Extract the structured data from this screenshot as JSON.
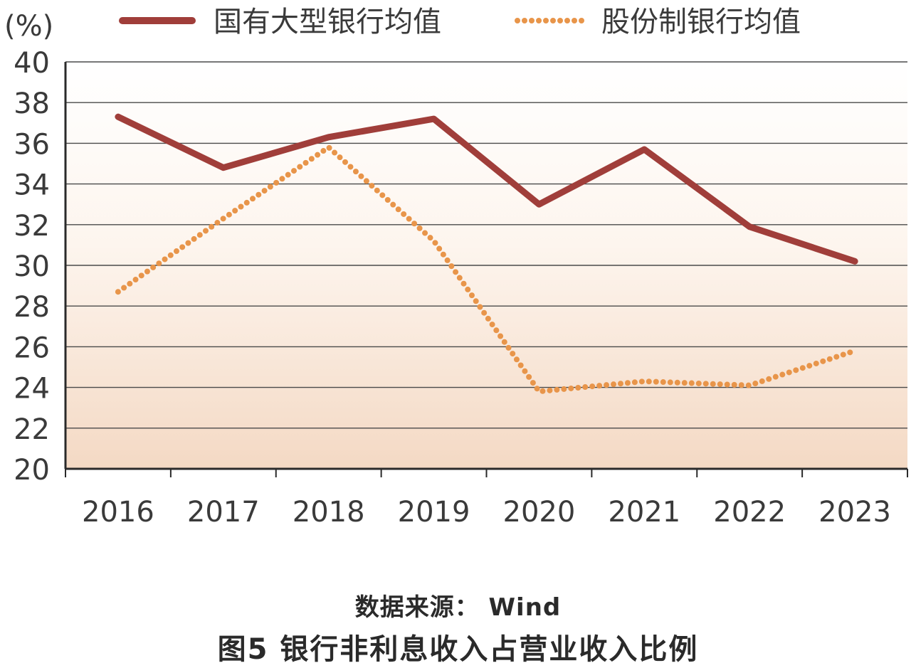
{
  "chart_data": {
    "type": "line",
    "ylabel": "(%)",
    "ylim": [
      20,
      40
    ],
    "yticks": [
      "20",
      "22",
      "24",
      "26",
      "28",
      "30",
      "32",
      "34",
      "36",
      "38",
      "40"
    ],
    "categories": [
      "2016",
      "2017",
      "2018",
      "2019",
      "2020",
      "2021",
      "2022",
      "2023"
    ],
    "legend_position": "top",
    "grid": true,
    "series": [
      {
        "name": "国有大型银行均值",
        "style": "solid",
        "color": "#a03e3a",
        "values": [
          37.3,
          34.8,
          36.3,
          37.2,
          33.0,
          35.7,
          31.9,
          30.2
        ]
      },
      {
        "name": "股份制银行均值",
        "style": "dotted",
        "color": "#e8954a",
        "values": [
          28.7,
          32.3,
          35.8,
          31.2,
          23.8,
          24.3,
          24.1,
          25.8
        ]
      }
    ]
  },
  "caption": {
    "source": "数据来源： Wind",
    "title": "图5  银行非利息收入占营业收入比例"
  }
}
